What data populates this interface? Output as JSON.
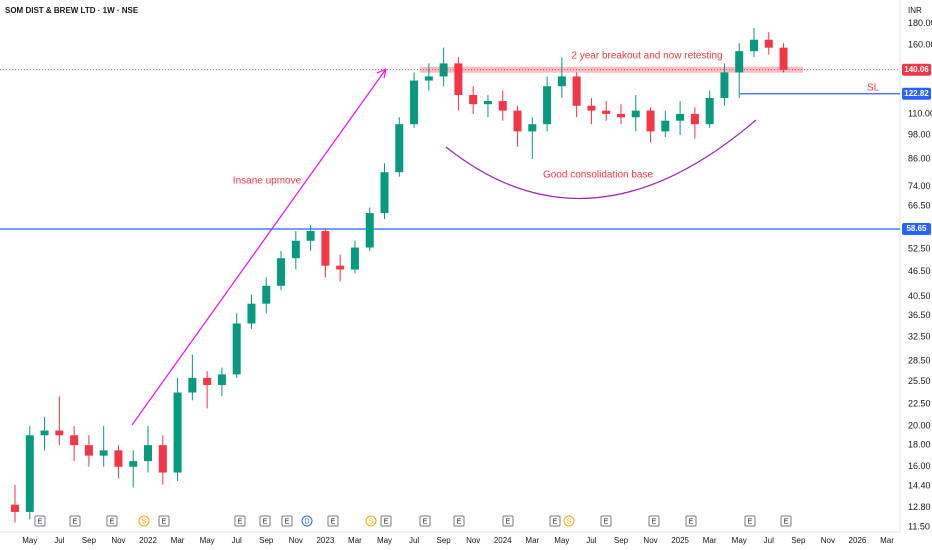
{
  "chart_data": {
    "type": "candlestick",
    "title": "SOM DIST & BREW LTD · 1W · NSE",
    "currency": "INR",
    "annotations": [
      "2 year breakout and now retesting",
      "Insane upmove",
      "Good consolidation base",
      "SL"
    ],
    "categories": [
      null,
      "May",
      null,
      "Jul",
      null,
      "Sep",
      null,
      "Nov",
      null,
      "2022",
      null,
      "Mar",
      null,
      "May",
      null,
      "Jul",
      null,
      "Sep",
      null,
      "Nov",
      null,
      "2023",
      null,
      "Mar",
      null,
      "May",
      null,
      "Jul",
      null,
      "Sep",
      null,
      "Nov",
      null,
      "2024",
      null,
      "Mar",
      null,
      "May",
      null,
      "Jul",
      null,
      "Sep",
      null,
      "Nov",
      null,
      "2025",
      null,
      "Mar",
      null,
      "May",
      null,
      "Jul",
      null,
      "Sep",
      null,
      "Nov",
      null,
      "2026",
      null,
      "Mar"
    ],
    "open": [
      13,
      12.5,
      19,
      19.5,
      19,
      18,
      17,
      17.5,
      16,
      16.5,
      18,
      15.5,
      24,
      26,
      25,
      26.5,
      35,
      39,
      43,
      50,
      55,
      58,
      48,
      47,
      53,
      64,
      80,
      104,
      132,
      135,
      145,
      122,
      116,
      118,
      112,
      100,
      104,
      128,
      135,
      115,
      112,
      110,
      108,
      112,
      100,
      106,
      110,
      104,
      120,
      138,
      155,
      165,
      158,
      null,
      null,
      null,
      null,
      null,
      null,
      null
    ],
    "high": [
      14.5,
      20,
      21,
      23.5,
      20,
      19,
      20,
      18,
      17.5,
      20,
      19,
      26,
      29.5,
      27,
      27.5,
      37,
      41,
      45,
      52,
      58,
      60,
      59,
      51,
      55,
      66,
      84,
      108,
      138,
      145,
      158,
      150,
      128,
      122,
      125,
      115,
      108,
      135,
      150,
      138,
      120,
      118,
      116,
      122,
      114,
      112,
      118,
      114,
      125,
      145,
      162,
      176,
      172,
      162,
      null,
      null,
      null,
      null,
      null,
      null,
      null
    ],
    "low": [
      11.8,
      12,
      17.5,
      18,
      16.5,
      16,
      16,
      15,
      14.3,
      15.5,
      14.5,
      14.8,
      23,
      22,
      23.5,
      26,
      34,
      37,
      42,
      47,
      52,
      45,
      44,
      46,
      52,
      62,
      78,
      102,
      125,
      128,
      112,
      110,
      108,
      106,
      92,
      86,
      100,
      120,
      108,
      104,
      106,
      104,
      100,
      94,
      97,
      98,
      96,
      102,
      115,
      120,
      150,
      152,
      138,
      null,
      null,
      null,
      null,
      null,
      null,
      null
    ],
    "close": [
      12.5,
      19,
      19.5,
      19,
      18,
      17,
      17.5,
      16,
      16.5,
      18,
      15.5,
      24,
      26,
      25,
      26.5,
      35,
      39,
      43,
      50,
      55,
      58,
      48,
      47,
      53,
      64,
      80,
      104,
      132,
      135,
      145,
      122,
      116,
      118,
      112,
      100,
      104,
      128,
      135,
      115,
      112,
      110,
      108,
      112,
      100,
      106,
      110,
      104,
      120,
      138,
      155,
      165,
      158,
      140.06,
      null,
      null,
      null,
      null,
      null,
      null,
      null
    ],
    "up_color": "#089981",
    "down_color": "#f23645",
    "log_scale": true,
    "grid": false,
    "ylim": [
      11.2,
      205
    ],
    "yticks": [
      {
        "value": 180,
        "label": "180.00"
      },
      {
        "value": 160,
        "label": "160.00"
      },
      {
        "value": 110,
        "label": "110.00"
      },
      {
        "value": 98,
        "label": "98.00"
      },
      {
        "value": 86,
        "label": "86.00"
      },
      {
        "value": 74,
        "label": "74.00"
      },
      {
        "value": 66.5,
        "label": "66.50"
      },
      {
        "value": 52.5,
        "label": "52.50"
      },
      {
        "value": 46.5,
        "label": "46.50"
      },
      {
        "value": 40.5,
        "label": "40.50"
      },
      {
        "value": 36.5,
        "label": "36.50"
      },
      {
        "value": 32.5,
        "label": "32.50"
      },
      {
        "value": 28.5,
        "label": "28.50"
      },
      {
        "value": 25.5,
        "label": "25.50"
      },
      {
        "value": 22.5,
        "label": "22.50"
      },
      {
        "value": 20,
        "label": "20.00"
      },
      {
        "value": 18,
        "label": "18.00"
      },
      {
        "value": 16,
        "label": "16.00"
      },
      {
        "value": 14.4,
        "label": "14.40"
      },
      {
        "value": 12.8,
        "label": "12.80"
      },
      {
        "value": 11.5,
        "label": "11.50"
      }
    ],
    "price_lines": [
      {
        "value": 140.06,
        "color": "#f23645"
      },
      {
        "value": 122.82,
        "color": "#2962ff"
      },
      {
        "value": 58.65,
        "color": "#2962ff"
      }
    ],
    "events": [
      "E",
      "E",
      "E",
      "S",
      "E",
      "E",
      "E",
      "E",
      "D",
      "E",
      "S",
      "E",
      "E",
      "E",
      "E",
      "E",
      "S",
      "E",
      "E",
      "E",
      "E",
      "E"
    ]
  }
}
